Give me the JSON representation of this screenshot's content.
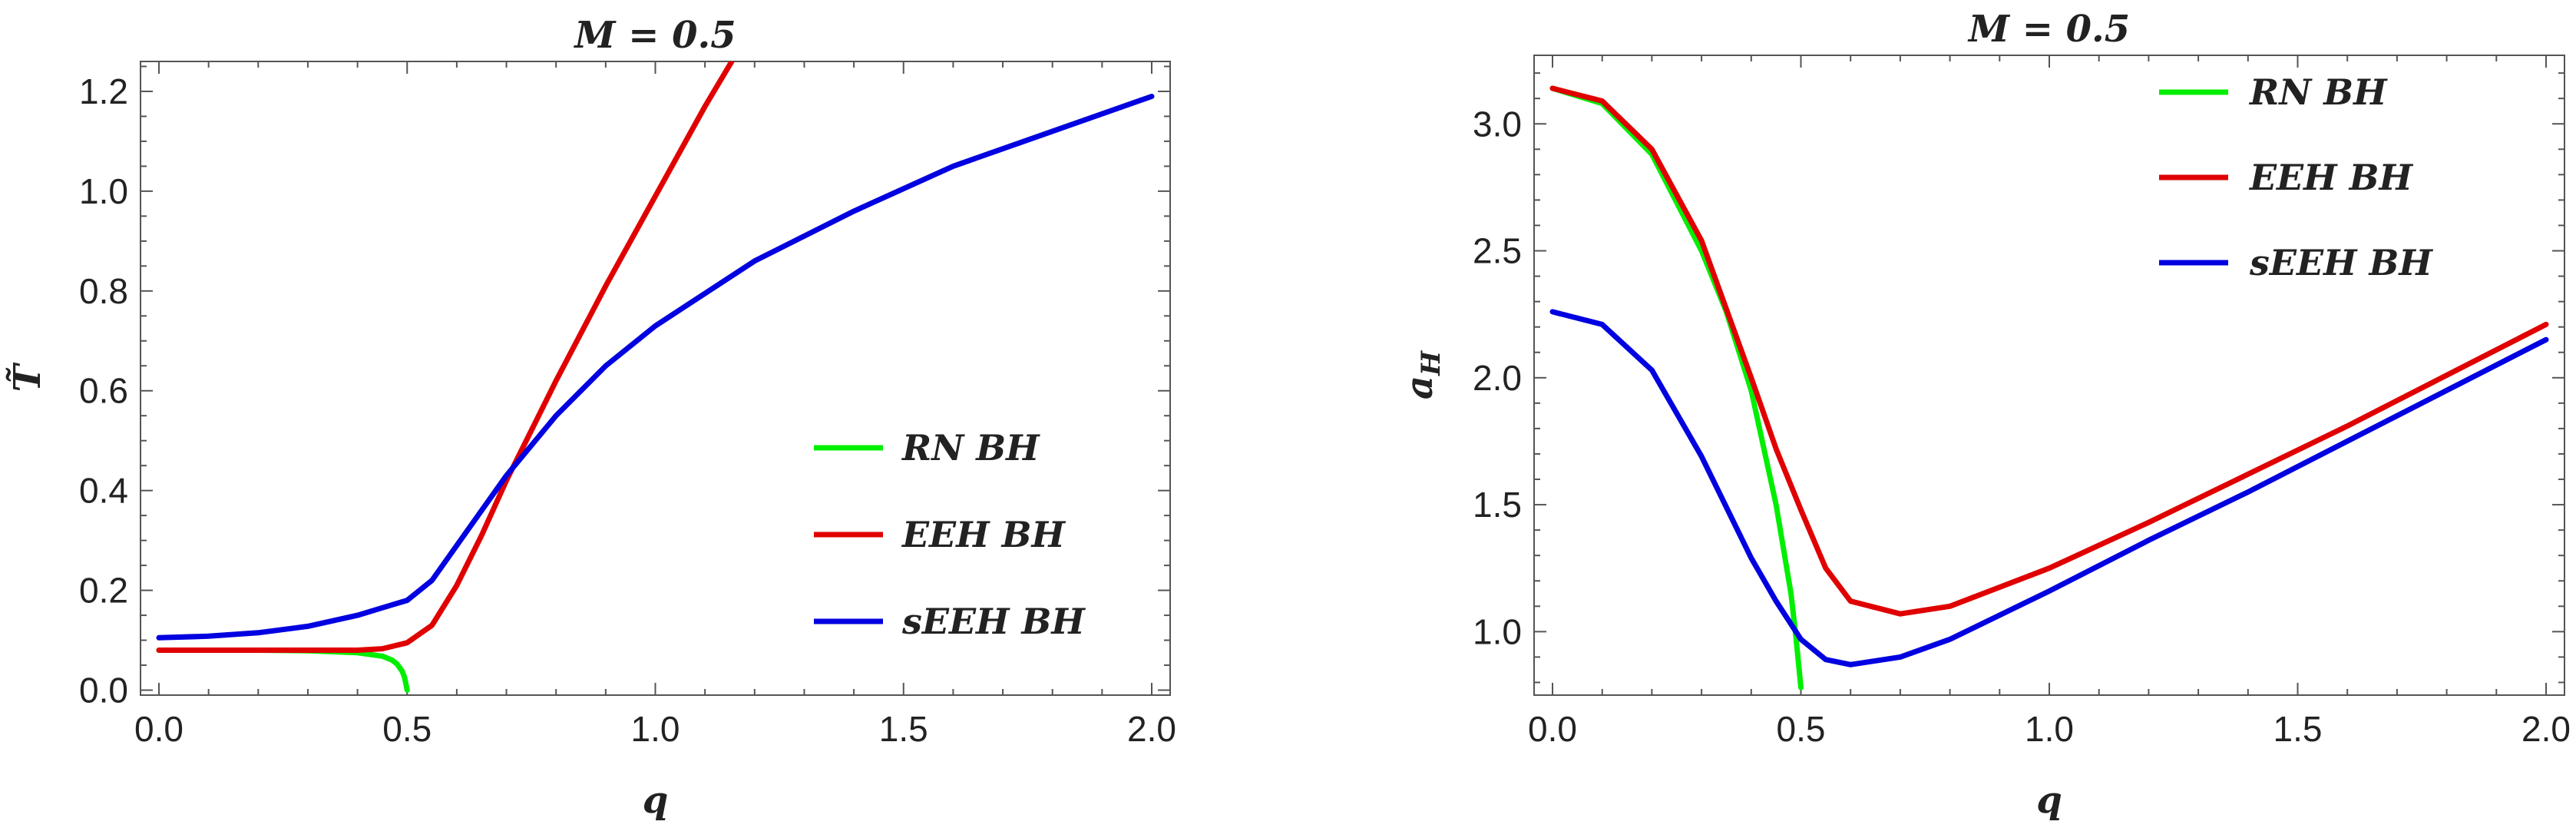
{
  "chart_data": [
    {
      "type": "line",
      "title": "M = 0.5",
      "xlabel": "q",
      "ylabel": "T̃",
      "xlim": [
        0,
        2.0
      ],
      "ylim": [
        -0.01,
        1.26
      ],
      "xticks": [
        "0.0",
        "0.5",
        "1.0",
        "1.5",
        "2.0"
      ],
      "xtick_values": [
        0,
        0.5,
        1.0,
        1.5,
        2.0
      ],
      "yticks": [
        "0.0",
        "0.2",
        "0.4",
        "0.6",
        "0.8",
        "1.0",
        "1.2"
      ],
      "ytick_values": [
        0,
        0.2,
        0.4,
        0.6,
        0.8,
        1.0,
        1.2
      ],
      "grid": false,
      "legend_position": "right",
      "series": [
        {
          "name": "RN BH",
          "color": "#00ee00",
          "x": [
            0,
            0.1,
            0.2,
            0.3,
            0.4,
            0.45,
            0.47,
            0.48,
            0.49,
            0.495,
            0.5
          ],
          "y": [
            0.08,
            0.08,
            0.08,
            0.079,
            0.075,
            0.068,
            0.06,
            0.052,
            0.038,
            0.025,
            0.0
          ]
        },
        {
          "name": "EEH BH",
          "color": "#e00000",
          "x": [
            0,
            0.2,
            0.4,
            0.45,
            0.5,
            0.55,
            0.6,
            0.65,
            0.7,
            0.75,
            0.8,
            0.9,
            1.0,
            1.1,
            1.16
          ],
          "y": [
            0.08,
            0.08,
            0.08,
            0.083,
            0.095,
            0.13,
            0.21,
            0.31,
            0.42,
            0.52,
            0.62,
            0.81,
            0.99,
            1.17,
            1.27
          ]
        },
        {
          "name": "sEEH BH",
          "color": "#0000e0",
          "x": [
            0,
            0.1,
            0.2,
            0.3,
            0.4,
            0.45,
            0.5,
            0.55,
            0.6,
            0.7,
            0.8,
            0.9,
            1.0,
            1.2,
            1.4,
            1.6,
            1.8,
            2.0
          ],
          "y": [
            0.105,
            0.108,
            0.115,
            0.128,
            0.15,
            0.165,
            0.18,
            0.22,
            0.29,
            0.43,
            0.55,
            0.65,
            0.73,
            0.86,
            0.96,
            1.05,
            1.12,
            1.19
          ]
        }
      ]
    },
    {
      "type": "line",
      "title": "M = 0.5",
      "xlabel": "q",
      "ylabel": "a_H",
      "ylabel_main": "a",
      "ylabel_sub": "H",
      "xlim": [
        0,
        2.0
      ],
      "ylim": [
        0.75,
        3.27
      ],
      "xticks": [
        "0.0",
        "0.5",
        "1.0",
        "1.5",
        "2.0"
      ],
      "xtick_values": [
        0,
        0.5,
        1.0,
        1.5,
        2.0
      ],
      "yticks": [
        "1.0",
        "1.5",
        "2.0",
        "2.5",
        "3.0"
      ],
      "ytick_values": [
        1.0,
        1.5,
        2.0,
        2.5,
        3.0
      ],
      "grid": false,
      "legend_position": "top-right",
      "series": [
        {
          "name": "RN BH",
          "color": "#00ee00",
          "x": [
            0,
            0.1,
            0.2,
            0.3,
            0.35,
            0.4,
            0.45,
            0.48,
            0.49,
            0.5
          ],
          "y": [
            3.14,
            3.08,
            2.88,
            2.5,
            2.26,
            1.95,
            1.5,
            1.15,
            0.98,
            0.78
          ]
        },
        {
          "name": "EEH BH",
          "color": "#e00000",
          "x": [
            0,
            0.1,
            0.2,
            0.3,
            0.4,
            0.45,
            0.5,
            0.55,
            0.6,
            0.7,
            0.8,
            1.0,
            1.2,
            1.4,
            1.6,
            1.8,
            2.0
          ],
          "y": [
            3.14,
            3.09,
            2.9,
            2.54,
            2.0,
            1.72,
            1.48,
            1.25,
            1.12,
            1.07,
            1.1,
            1.25,
            1.43,
            1.62,
            1.81,
            2.01,
            2.21
          ]
        },
        {
          "name": "sEEH BH",
          "color": "#0000e0",
          "x": [
            0,
            0.1,
            0.2,
            0.3,
            0.4,
            0.45,
            0.5,
            0.55,
            0.6,
            0.7,
            0.8,
            1.0,
            1.2,
            1.4,
            1.6,
            1.8,
            2.0
          ],
          "y": [
            2.26,
            2.21,
            2.03,
            1.69,
            1.29,
            1.12,
            0.97,
            0.89,
            0.87,
            0.9,
            0.97,
            1.16,
            1.36,
            1.55,
            1.75,
            1.95,
            2.15
          ]
        }
      ]
    }
  ]
}
